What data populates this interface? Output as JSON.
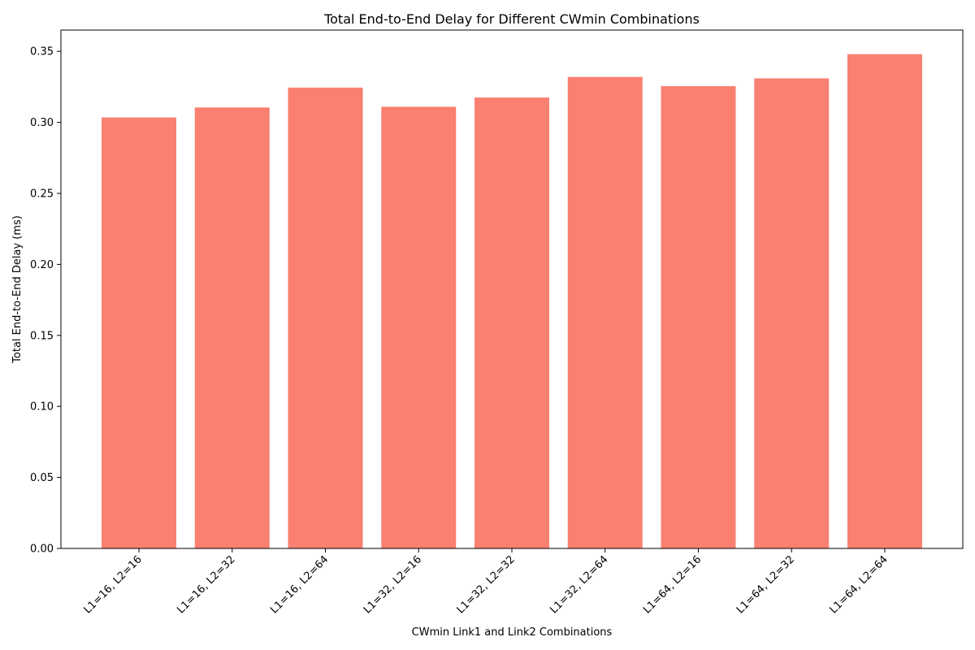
{
  "chart_data": {
    "type": "bar",
    "title": "Total End-to-End Delay for Different CWmin Combinations",
    "xlabel": "CWmin Link1 and Link2 Combinations",
    "ylabel": "Total End-to-End Delay (ms)",
    "categories": [
      "L1=16, L2=16",
      "L1=16, L2=32",
      "L1=16, L2=64",
      "L1=32, L2=16",
      "L1=32, L2=32",
      "L1=32, L2=64",
      "L1=64, L2=16",
      "L1=64, L2=32",
      "L1=64, L2=64"
    ],
    "values": [
      0.3035,
      0.3105,
      0.3245,
      0.311,
      0.3175,
      0.332,
      0.3255,
      0.331,
      0.348
    ],
    "ylim": [
      0,
      0.365
    ],
    "yticks": [
      "0.00",
      "0.05",
      "0.10",
      "0.15",
      "0.20",
      "0.25",
      "0.30",
      "0.35"
    ],
    "bar_color": "#fa8072",
    "grid": false
  }
}
